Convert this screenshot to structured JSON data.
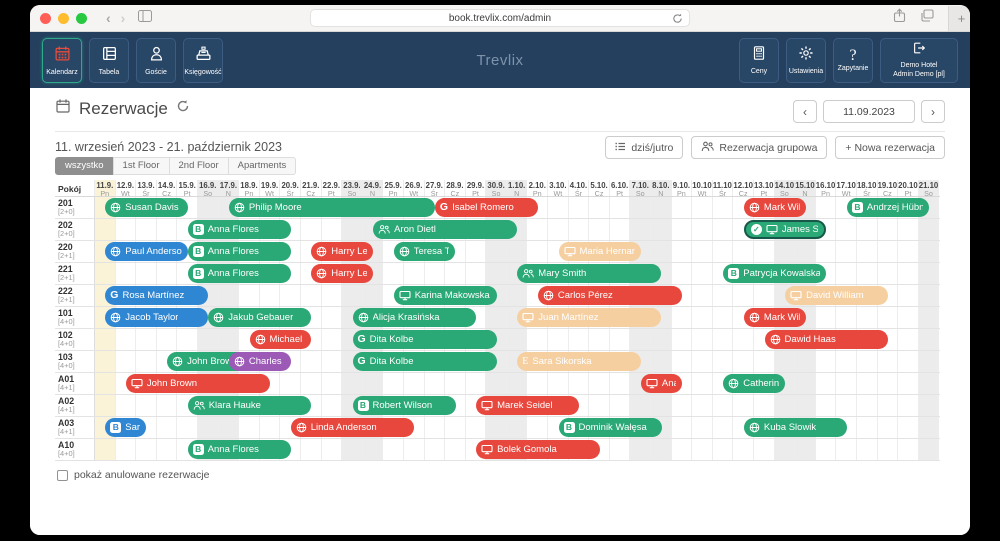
{
  "browser": {
    "url": "book.trevlix.com/admin"
  },
  "navbar": {
    "brand": "Trevlix",
    "left": [
      {
        "label": "Kalendarz",
        "icon": "calendar-icon",
        "active": true
      },
      {
        "label": "Tabela",
        "icon": "table-icon"
      },
      {
        "label": "Goście",
        "icon": "person-icon"
      },
      {
        "label": "Księgowość",
        "icon": "cash-register-icon"
      }
    ],
    "right": [
      {
        "label": "Ceny",
        "icon": "calculator-icon"
      },
      {
        "label": "Ustawienia",
        "icon": "gear-icon"
      },
      {
        "label": "Zapytanie",
        "icon": "question-icon"
      }
    ],
    "user": {
      "line1": "Demo Hotel",
      "line2": "Admin Demo [pl]",
      "icon": "logout-icon"
    }
  },
  "panel": {
    "title": "Rezerwacje",
    "date_range": "11. wrzesień 2023 - 21. październik 2023",
    "datepicker": "11.09.2023",
    "prev": "‹",
    "next": "›",
    "filters": [
      "wszystko",
      "1st Floor",
      "2nd Floor",
      "Apartments"
    ],
    "active_filter": "wszystko",
    "buttons": {
      "today": "dziś/jutro",
      "group": "Rezerwacja grupowa",
      "new": "+ Nowa rezerwacja"
    },
    "show_cancelled": "pokaż anulowane rezerwacje"
  },
  "calendar": {
    "room_col_header": "Pokój",
    "days": [
      {
        "d": "11.9.",
        "w": "Pn",
        "today": true
      },
      {
        "d": "12.9.",
        "w": "Wt"
      },
      {
        "d": "13.9.",
        "w": "Śr"
      },
      {
        "d": "14.9.",
        "w": "Cz"
      },
      {
        "d": "15.9.",
        "w": "Pt"
      },
      {
        "d": "16.9.",
        "w": "So"
      },
      {
        "d": "17.9.",
        "w": "N"
      },
      {
        "d": "18.9.",
        "w": "Pn"
      },
      {
        "d": "19.9.",
        "w": "Wt"
      },
      {
        "d": "20.9.",
        "w": "Śr"
      },
      {
        "d": "21.9.",
        "w": "Cz"
      },
      {
        "d": "22.9.",
        "w": "Pt"
      },
      {
        "d": "23.9.",
        "w": "So"
      },
      {
        "d": "24.9.",
        "w": "N"
      },
      {
        "d": "25.9.",
        "w": "Pn"
      },
      {
        "d": "26.9.",
        "w": "Wt"
      },
      {
        "d": "27.9.",
        "w": "Śr"
      },
      {
        "d": "28.9.",
        "w": "Cz"
      },
      {
        "d": "29.9.",
        "w": "Pt"
      },
      {
        "d": "30.9.",
        "w": "So"
      },
      {
        "d": "1.10.",
        "w": "N"
      },
      {
        "d": "2.10.",
        "w": "Pn"
      },
      {
        "d": "3.10.",
        "w": "Wt"
      },
      {
        "d": "4.10.",
        "w": "Śr"
      },
      {
        "d": "5.10.",
        "w": "Cz"
      },
      {
        "d": "6.10.",
        "w": "Pt"
      },
      {
        "d": "7.10.",
        "w": "So"
      },
      {
        "d": "8.10.",
        "w": "N"
      },
      {
        "d": "9.10.",
        "w": "Pn"
      },
      {
        "d": "10.10.",
        "w": "Wt"
      },
      {
        "d": "11.10.",
        "w": "Śr"
      },
      {
        "d": "12.10.",
        "w": "Cz"
      },
      {
        "d": "13.10.",
        "w": "Pt"
      },
      {
        "d": "14.10.",
        "w": "So"
      },
      {
        "d": "15.10.",
        "w": "N"
      },
      {
        "d": "16.10.",
        "w": "Pn"
      },
      {
        "d": "17.10.",
        "w": "Wt"
      },
      {
        "d": "18.10.",
        "w": "Śr"
      },
      {
        "d": "19.10.",
        "w": "Cz"
      },
      {
        "d": "20.10.",
        "w": "Pt"
      },
      {
        "d": "21.10.",
        "w": "So"
      }
    ],
    "rooms": [
      {
        "name": "201",
        "cap": "[2+0]"
      },
      {
        "name": "202",
        "cap": "[2+0]"
      },
      {
        "name": "220",
        "cap": "[2+1]"
      },
      {
        "name": "221",
        "cap": "[2+1]"
      },
      {
        "name": "222",
        "cap": "[2+1]"
      },
      {
        "name": "101",
        "cap": "[4+0]"
      },
      {
        "name": "102",
        "cap": "[4+0]"
      },
      {
        "name": "103",
        "cap": "[4+0]"
      },
      {
        "name": "A01",
        "cap": "[4+1]"
      },
      {
        "name": "A02",
        "cap": "[4+1]"
      },
      {
        "name": "A03",
        "cap": "[4+1]"
      },
      {
        "name": "A10",
        "cap": "[4+0]"
      }
    ],
    "colors": {
      "green": "#2aa876",
      "red": "#e8473d",
      "blue": "#2f87d3",
      "beige": "#f6cfa0",
      "purple": "#9c59b6"
    },
    "reservations": [
      {
        "room": "201",
        "guest": "Susan Davis",
        "color": "green",
        "source": "web",
        "start": 0,
        "end": 4
      },
      {
        "room": "201",
        "guest": "Philip Moore",
        "color": "green",
        "source": "web",
        "start": 6,
        "end": 16
      },
      {
        "room": "201",
        "guest": "Isabel Romero",
        "color": "red",
        "source": "google",
        "start": 16,
        "end": 21
      },
      {
        "room": "201",
        "guest": "Mark Wilson",
        "color": "red",
        "source": "web",
        "start": 31,
        "end": 34
      },
      {
        "room": "201",
        "guest": "Andrzej Hübner",
        "color": "green",
        "source": "booking",
        "start": 36,
        "end": 40
      },
      {
        "room": "202",
        "guest": "Anna Flores",
        "color": "green",
        "source": "booking",
        "start": 4,
        "end": 9
      },
      {
        "room": "202",
        "guest": "Aron Dietl",
        "color": "green",
        "source": "group",
        "start": 13,
        "end": 20
      },
      {
        "room": "202",
        "guest": "James Smith",
        "color": "green",
        "source": "desk",
        "start": 31,
        "end": 35,
        "confirmed": true
      },
      {
        "room": "220",
        "guest": "Paul Anderson",
        "color": "blue",
        "source": "web",
        "start": 0,
        "end": 4
      },
      {
        "room": "220",
        "guest": "Anna Flores",
        "color": "green",
        "source": "booking",
        "start": 4,
        "end": 9
      },
      {
        "room": "220",
        "guest": "Harry Lewis",
        "color": "red",
        "source": "web",
        "start": 10,
        "end": 13
      },
      {
        "room": "220",
        "guest": "Teresa Torres",
        "color": "green",
        "source": "web",
        "start": 14,
        "end": 17
      },
      {
        "room": "220",
        "guest": "Maria Hernandez",
        "color": "beige",
        "source": "desk",
        "start": 22,
        "end": 26
      },
      {
        "room": "221",
        "guest": "Anna Flores",
        "color": "green",
        "source": "booking",
        "start": 4,
        "end": 9
      },
      {
        "room": "221",
        "guest": "Harry Lewis",
        "color": "red",
        "source": "web",
        "start": 10,
        "end": 13
      },
      {
        "room": "221",
        "guest": "Mary Smith",
        "color": "green",
        "source": "group",
        "start": 20,
        "end": 27
      },
      {
        "room": "221",
        "guest": "Patrycja Kowalska",
        "color": "green",
        "source": "booking",
        "start": 30,
        "end": 35
      },
      {
        "room": "222",
        "guest": "Rosa Martínez",
        "color": "blue",
        "source": "google",
        "start": 0,
        "end": 5
      },
      {
        "room": "222",
        "guest": "Karina Makowska",
        "color": "green",
        "source": "desk",
        "start": 14,
        "end": 19
      },
      {
        "room": "222",
        "guest": "Carlos Pérez",
        "color": "red",
        "source": "web",
        "start": 21,
        "end": 28
      },
      {
        "room": "222",
        "guest": "David William",
        "color": "beige",
        "source": "desk",
        "start": 33,
        "end": 38
      },
      {
        "room": "101",
        "guest": "Jacob Taylor",
        "color": "blue",
        "source": "web",
        "start": 0,
        "end": 5
      },
      {
        "room": "101",
        "guest": "Jakub Gebauer",
        "color": "green",
        "source": "web",
        "start": 5,
        "end": 10
      },
      {
        "room": "101",
        "guest": "Alicja Krasińska",
        "color": "green",
        "source": "web",
        "start": 12,
        "end": 18
      },
      {
        "room": "101",
        "guest": "Juan Martínez",
        "color": "beige",
        "source": "desk",
        "start": 20,
        "end": 27
      },
      {
        "room": "101",
        "guest": "Mark Wilson",
        "color": "red",
        "source": "web",
        "start": 31,
        "end": 34
      },
      {
        "room": "102",
        "guest": "Michael Simons",
        "color": "red",
        "source": "web",
        "start": 7,
        "end": 10
      },
      {
        "room": "102",
        "guest": "Dita Kolbe",
        "color": "green",
        "source": "google",
        "start": 12,
        "end": 19
      },
      {
        "room": "102",
        "guest": "Dawid Haas",
        "color": "red",
        "source": "web",
        "start": 32,
        "end": 38
      },
      {
        "room": "103",
        "guest": "John Brown",
        "color": "green",
        "source": "web",
        "start": 3,
        "end": 7
      },
      {
        "room": "103",
        "guest": "Charles Baker",
        "color": "purple",
        "source": "web",
        "start": 6,
        "end": 9
      },
      {
        "room": "103",
        "guest": "Dita Kolbe",
        "color": "green",
        "source": "google",
        "start": 12,
        "end": 19
      },
      {
        "room": "103",
        "guest": "Sara Sikorska",
        "color": "beige",
        "source": "expedia",
        "start": 20,
        "end": 26
      },
      {
        "room": "A01",
        "guest": "John Brown",
        "color": "red",
        "source": "desk",
        "start": 1,
        "end": 8
      },
      {
        "room": "A01",
        "guest": "Ana Garcia",
        "color": "red",
        "source": "desk",
        "start": 26,
        "end": 28
      },
      {
        "room": "A01",
        "guest": "Catherine Young",
        "color": "green",
        "source": "web",
        "start": 30,
        "end": 33
      },
      {
        "room": "A02",
        "guest": "Klara Hauke",
        "color": "green",
        "source": "group",
        "start": 4,
        "end": 10
      },
      {
        "room": "A02",
        "guest": "Robert Wilson",
        "color": "green",
        "source": "booking",
        "start": 12,
        "end": 17
      },
      {
        "room": "A02",
        "guest": "Marek Seidel",
        "color": "red",
        "source": "desk",
        "start": 18,
        "end": 23
      },
      {
        "room": "A03",
        "guest": "Sarah Taylor",
        "color": "blue",
        "source": "booking",
        "start": 0,
        "end": 2
      },
      {
        "room": "A03",
        "guest": "Linda Anderson",
        "color": "red",
        "source": "web",
        "start": 9,
        "end": 15
      },
      {
        "room": "A03",
        "guest": "Dominik Wałęsa",
        "color": "green",
        "source": "booking",
        "start": 22,
        "end": 27
      },
      {
        "room": "A03",
        "guest": "Kuba Slowik",
        "color": "green",
        "source": "web",
        "start": 31,
        "end": 36
      },
      {
        "room": "A10",
        "guest": "Anna Flores",
        "color": "green",
        "source": "booking",
        "start": 4,
        "end": 9
      },
      {
        "room": "A10",
        "guest": "Bolek Gomola",
        "color": "red",
        "source": "desk",
        "start": 18,
        "end": 24
      }
    ]
  }
}
